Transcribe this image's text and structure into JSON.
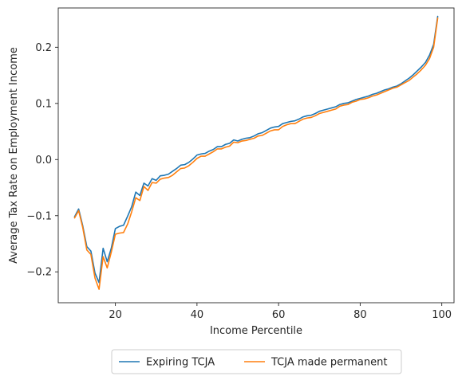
{
  "chart_data": {
    "type": "line",
    "xlabel": "Income Percentile",
    "ylabel": "Average Tax Rate on Employment Income",
    "xlim": [
      6,
      103
    ],
    "ylim": [
      -0.255,
      0.27
    ],
    "x_ticks": [
      20,
      40,
      60,
      80,
      100
    ],
    "x_tick_labels": [
      "20",
      "40",
      "60",
      "80",
      "100"
    ],
    "y_ticks": [
      -0.2,
      -0.1,
      0.0,
      0.1,
      0.2
    ],
    "y_tick_labels": [
      "−0.2",
      "−0.1",
      "0.0",
      "0.1",
      "0.2"
    ],
    "grid": false,
    "legend_position": "bottom-center, below plot",
    "x": [
      10,
      11,
      12,
      13,
      14,
      15,
      16,
      17,
      18,
      19,
      20,
      21,
      22,
      23,
      24,
      25,
      26,
      27,
      28,
      29,
      30,
      31,
      32,
      33,
      34,
      35,
      36,
      37,
      38,
      39,
      40,
      41,
      42,
      43,
      44,
      45,
      46,
      47,
      48,
      49,
      50,
      51,
      52,
      53,
      54,
      55,
      56,
      57,
      58,
      59,
      60,
      61,
      62,
      63,
      64,
      65,
      66,
      67,
      68,
      69,
      70,
      71,
      72,
      73,
      74,
      75,
      76,
      77,
      78,
      79,
      80,
      81,
      82,
      83,
      84,
      85,
      86,
      87,
      88,
      89,
      90,
      91,
      92,
      93,
      94,
      95,
      96,
      97,
      98,
      99
    ],
    "series": [
      {
        "name": "Expiring TCJA",
        "color": "#1f77b4",
        "values": [
          -0.102,
          -0.088,
          -0.118,
          -0.155,
          -0.163,
          -0.202,
          -0.219,
          -0.158,
          -0.182,
          -0.158,
          -0.123,
          -0.119,
          -0.117,
          -0.101,
          -0.084,
          -0.058,
          -0.064,
          -0.042,
          -0.047,
          -0.034,
          -0.037,
          -0.029,
          -0.028,
          -0.026,
          -0.021,
          -0.016,
          -0.01,
          -0.009,
          -0.005,
          0.001,
          0.008,
          0.01,
          0.011,
          0.015,
          0.018,
          0.023,
          0.023,
          0.027,
          0.029,
          0.035,
          0.033,
          0.036,
          0.038,
          0.039,
          0.042,
          0.046,
          0.048,
          0.052,
          0.056,
          0.058,
          0.059,
          0.064,
          0.066,
          0.068,
          0.069,
          0.072,
          0.076,
          0.078,
          0.079,
          0.082,
          0.086,
          0.088,
          0.09,
          0.092,
          0.094,
          0.098,
          0.1,
          0.101,
          0.104,
          0.107,
          0.109,
          0.111,
          0.113,
          0.116,
          0.118,
          0.121,
          0.124,
          0.126,
          0.129,
          0.131,
          0.135,
          0.14,
          0.145,
          0.151,
          0.158,
          0.165,
          0.173,
          0.186,
          0.205,
          0.255
        ]
      },
      {
        "name": "TCJA made permanent",
        "color": "#ff7f0e",
        "values": [
          -0.104,
          -0.091,
          -0.121,
          -0.161,
          -0.169,
          -0.211,
          -0.231,
          -0.173,
          -0.193,
          -0.165,
          -0.133,
          -0.131,
          -0.13,
          -0.115,
          -0.093,
          -0.068,
          -0.073,
          -0.048,
          -0.055,
          -0.041,
          -0.042,
          -0.035,
          -0.033,
          -0.032,
          -0.028,
          -0.022,
          -0.016,
          -0.015,
          -0.011,
          -0.005,
          0.002,
          0.006,
          0.006,
          0.01,
          0.014,
          0.019,
          0.019,
          0.022,
          0.024,
          0.031,
          0.03,
          0.033,
          0.034,
          0.036,
          0.038,
          0.042,
          0.043,
          0.047,
          0.051,
          0.053,
          0.053,
          0.059,
          0.062,
          0.064,
          0.064,
          0.068,
          0.072,
          0.074,
          0.075,
          0.078,
          0.082,
          0.084,
          0.086,
          0.088,
          0.09,
          0.095,
          0.097,
          0.098,
          0.102,
          0.104,
          0.107,
          0.108,
          0.11,
          0.113,
          0.115,
          0.118,
          0.121,
          0.124,
          0.127,
          0.129,
          0.133,
          0.137,
          0.141,
          0.147,
          0.153,
          0.16,
          0.168,
          0.18,
          0.2,
          0.252
        ]
      }
    ]
  }
}
